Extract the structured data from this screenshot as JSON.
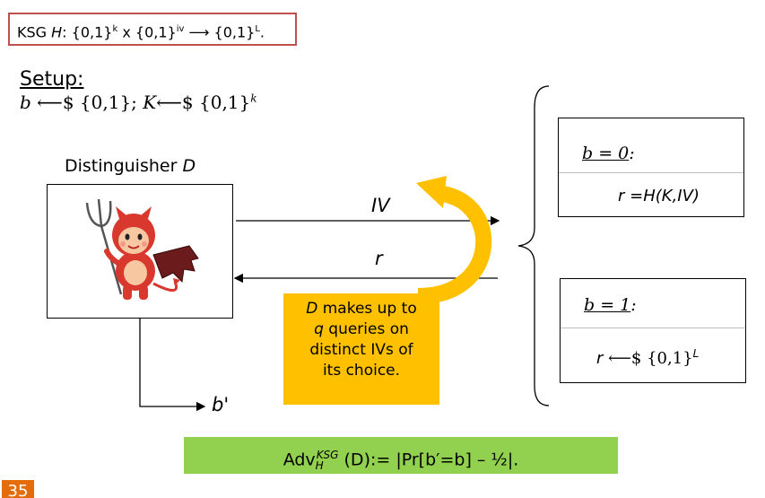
{
  "header": {
    "ksg_prefix": "KSG ",
    "ksg_name": "H",
    "ksg_colon": ": {0,1}",
    "sup_k": "k",
    "times": " x {0,1}",
    "sup_iv": "iv",
    "arrow": " ⟶ {0,1}",
    "sup_L": "L",
    "period": "."
  },
  "setup": {
    "label": "Setup:",
    "b": "b",
    "b_sample": " ⟵$ {0,1}; ",
    "K": "K",
    "K_sample": "⟵$ {0,1}",
    "sup_k": "k"
  },
  "distinguisher": {
    "label": "Distinguisher ",
    "name": "D"
  },
  "arrows": {
    "iv": "IV",
    "r": "r",
    "output": "b'"
  },
  "note": {
    "line1_var": "D",
    "line1_rest": " makes up to",
    "line2_var": "q",
    "line2_rest": " queries on",
    "line3": "distinct IVs of",
    "line4": "its choice."
  },
  "case0": {
    "title_var": "b = 0",
    "title_colon": ":",
    "output": "r =H(K,IV)"
  },
  "case1": {
    "title_var": "b = 1",
    "title_colon": ":",
    "output_r": "r",
    "output_sample": " ⟵$ {0,1}",
    "sup_L": "L"
  },
  "advantage": {
    "adv": "Adv",
    "sup": "KSG",
    "sub": "H",
    "rest": " (D):= |Pr[b′=b] – ½|."
  },
  "slide_number": "35",
  "colors": {
    "title_border": "#c0504d",
    "note_fill": "#ffc000",
    "adv_fill": "#92d050",
    "slide_num_fill": "#e46c0a"
  }
}
